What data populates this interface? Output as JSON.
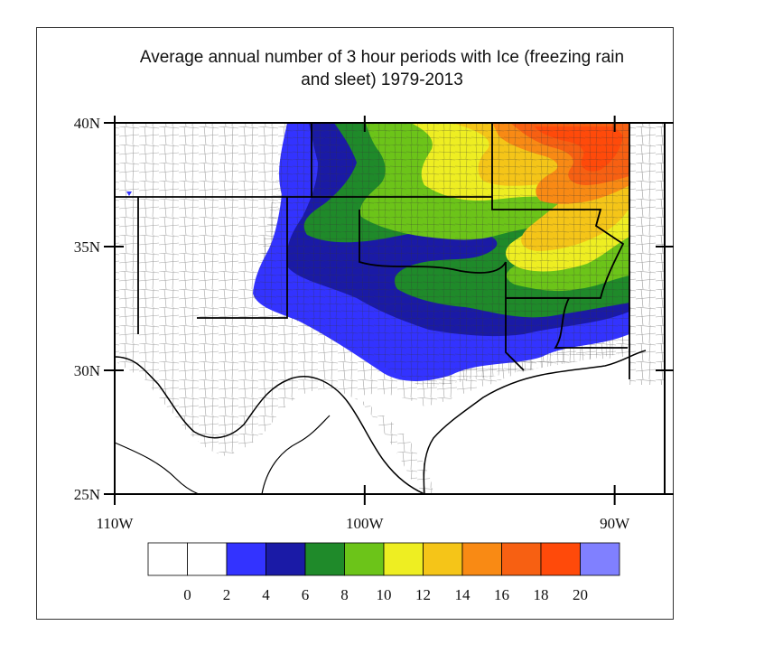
{
  "title": {
    "line1": "Average annual number of 3 hour periods with Ice (freezing rain",
    "line2": "and sleet) 1979-2013"
  },
  "axes": {
    "lat_labels": [
      {
        "value": 40,
        "label": "40N"
      },
      {
        "value": 35,
        "label": "35N"
      },
      {
        "value": 30,
        "label": "30N"
      },
      {
        "value": 25,
        "label": "25N"
      }
    ],
    "lon_labels": [
      {
        "value": -110,
        "label": "110W"
      },
      {
        "value": -100,
        "label": "100W"
      },
      {
        "value": -90,
        "label": "90W"
      }
    ],
    "lat_range": [
      25,
      40
    ],
    "lon_range": [
      -110,
      -88
    ]
  },
  "colorbar": {
    "colors": [
      "#ffffff",
      "#ffffff",
      "#3333ff",
      "#1a1aa6",
      "#1f8a2a",
      "#6cc419",
      "#eeee22",
      "#f5c518",
      "#f98a14",
      "#f76012",
      "#ff4a0a",
      "#8080ff"
    ],
    "labels": [
      "0",
      "2",
      "4",
      "6",
      "8",
      "10",
      "12",
      "14",
      "16",
      "18",
      "20"
    ]
  },
  "legend_colors": {
    "blue_2_4": "#3333ff",
    "darkblue_4_6": "#1a1aa6",
    "darkgreen_6_8": "#1f8a2a",
    "lightgreen_8_10": "#6cc419",
    "yellow_10_12": "#eeee22",
    "gold_12_14": "#f5c518",
    "orange_14_16": "#f98a14",
    "darkorange_16_18": "#f76012",
    "red_18_20": "#ff4a0a",
    "lavender_gt20": "#8080ff"
  }
}
